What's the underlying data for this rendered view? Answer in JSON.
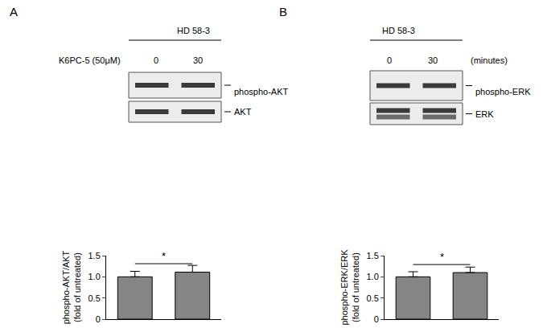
{
  "blots": [
    {
      "panel": "A",
      "group": "HD 58-3",
      "row_header": "K6PC-5 (50μM)",
      "lanes": [
        "0",
        "30"
      ],
      "bands": [
        "phospho-AKT",
        "AKT"
      ]
    },
    {
      "panel": "B",
      "group": "HD 58-3",
      "lane_unit": "(minutes)",
      "lanes": [
        "0",
        "30"
      ],
      "bands": [
        "phospho-ERK",
        "ERK"
      ]
    }
  ],
  "chart_data": [
    {
      "type": "bar",
      "categories": [
        null,
        null
      ],
      "values": [
        1.0,
        1.11
      ],
      "errors": [
        0.13,
        0.16
      ],
      "color": "#858585",
      "y_label": "phospho-AKT/AKT\n(fold of untreated)",
      "ylim": [
        0,
        1.5
      ],
      "yticks": [
        0,
        0.5,
        {
          "value": 1,
          "label": "1.0"
        },
        {
          "value": 1.5,
          "label": "1.5"
        }
      ],
      "tick_labels": "y",
      "grid": false,
      "annotations": [
        {
          "text": "*",
          "x0": 0,
          "x1": 1,
          "y": 1.31
        }
      ]
    },
    {
      "type": "bar",
      "categories": [
        null,
        null
      ],
      "values": [
        1.0,
        1.1
      ],
      "errors": [
        0.12,
        0.13
      ],
      "color": "#858585",
      "y_label": "phospho-ERK/ERK\n(fold of untreated)",
      "ylim": [
        0,
        1.5
      ],
      "yticks": [
        0,
        0.5,
        {
          "value": 1,
          "label": "1.0"
        },
        {
          "value": 1.5,
          "label": "1.5"
        }
      ],
      "tick_labels": "y",
      "grid": false,
      "annotations": [
        {
          "text": "*",
          "x0": 0,
          "x1": 1,
          "y": 1.29
        }
      ]
    }
  ]
}
